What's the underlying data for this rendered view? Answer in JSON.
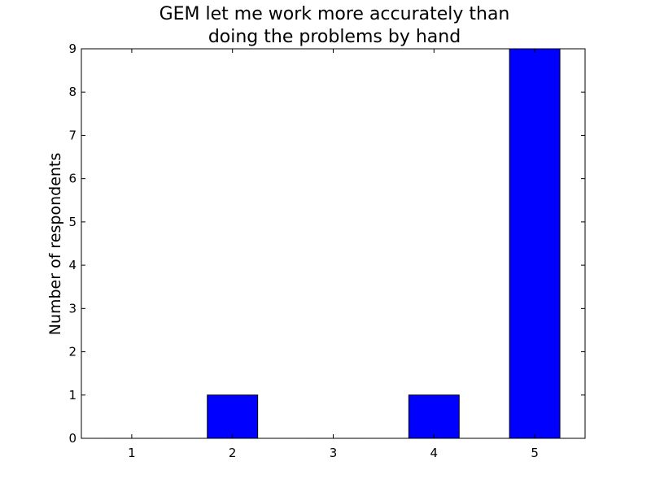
{
  "chart_data": {
    "type": "bar",
    "title_lines": [
      "GEM let me work more accurately than",
      "doing the problems by hand"
    ],
    "xlabel": "",
    "ylabel": "Number of respondents",
    "categories": [
      "1",
      "2",
      "3",
      "4",
      "5"
    ],
    "x": [
      1,
      2,
      3,
      4,
      5
    ],
    "values": [
      0,
      1,
      0,
      1,
      9
    ],
    "xlim": [
      0.5,
      5.5
    ],
    "ylim": [
      0,
      9
    ],
    "yticks": [
      0,
      1,
      2,
      3,
      4,
      5,
      6,
      7,
      8,
      9
    ],
    "grid": false,
    "legend": "none",
    "bar_color": "#0000ff",
    "edge_color": "#000000"
  }
}
